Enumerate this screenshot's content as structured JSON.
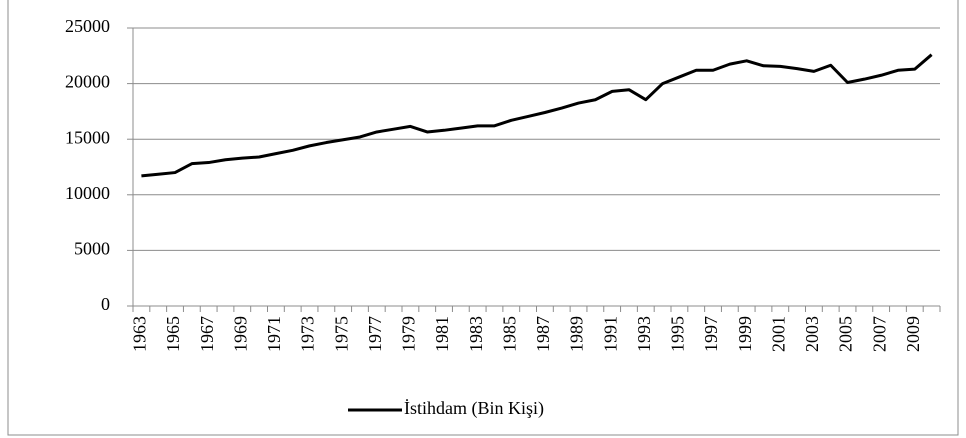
{
  "chart_data": {
    "type": "line",
    "categories": [
      "1963",
      null,
      "1965",
      null,
      "1967",
      null,
      "1969",
      null,
      "1971",
      null,
      "1973",
      null,
      "1975",
      null,
      "1977",
      null,
      "1979",
      null,
      "1981",
      null,
      "1983",
      null,
      "1985",
      null,
      "1987",
      null,
      "1989",
      null,
      "1991",
      null,
      "1993",
      null,
      "1995",
      null,
      "1997",
      null,
      "1999",
      null,
      "2001",
      null,
      "2003",
      null,
      "2005",
      null,
      "2007",
      null,
      "2009",
      null
    ],
    "series": [
      {
        "name": "İstihdam (Bin Kişi)",
        "color": "#000000",
        "values": [
          11700,
          11850,
          12000,
          12800,
          12900,
          13150,
          13300,
          13400,
          13700,
          14000,
          14400,
          14700,
          14950,
          15200,
          15650,
          15900,
          16150,
          15650,
          15800,
          16000,
          16200,
          16200,
          16700,
          17050,
          17400,
          17800,
          18250,
          18550,
          19300,
          19450,
          18550,
          20000,
          20600,
          21200,
          21200,
          21750,
          22050,
          21600,
          21550,
          21350,
          21100,
          21650,
          20100,
          20400,
          20750,
          21200,
          21300,
          22600
        ]
      }
    ],
    "ylim": [
      0,
      25000
    ],
    "yticks": [
      0,
      5000,
      10000,
      15000,
      20000,
      25000
    ],
    "grid": true,
    "legend": "bottom"
  }
}
